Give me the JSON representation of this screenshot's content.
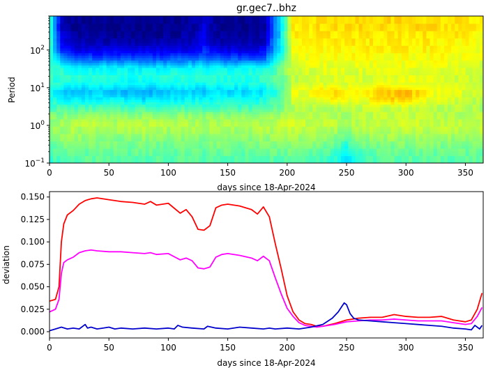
{
  "chart_data": [
    {
      "type": "heatmap",
      "title": "gr.gec7..bhz",
      "xlabel": "days since 18-Apr-2024",
      "ylabel": "Period",
      "xlim": [
        0,
        365
      ],
      "ylim": [
        0.1,
        800
      ],
      "yscale": "log",
      "xticks": [
        0,
        50,
        100,
        150,
        200,
        250,
        300,
        350
      ],
      "yticks": [
        {
          "value": 0.1,
          "base": "10",
          "exp": "−1"
        },
        {
          "value": 1,
          "base": "10",
          "exp": "0"
        },
        {
          "value": 10,
          "base": "10",
          "exp": "1"
        },
        {
          "value": 100,
          "base": "10",
          "exp": "2"
        }
      ],
      "colormap": "jet",
      "colormap_range": [
        0,
        1
      ],
      "period_rows": [
        0.1,
        0.16,
        0.26,
        0.42,
        0.7,
        1.1,
        1.8,
        3,
        5,
        8,
        13,
        21,
        35,
        57,
        95,
        155,
        255,
        420,
        700
      ],
      "day_cols": [
        0,
        10,
        20,
        40,
        60,
        80,
        100,
        120,
        130,
        140,
        160,
        180,
        195,
        205,
        220,
        240,
        250,
        260,
        280,
        300,
        320,
        340,
        365
      ],
      "values": [
        [
          0.42,
          0.44,
          0.45,
          0.46,
          0.45,
          0.46,
          0.45,
          0.46,
          0.45,
          0.46,
          0.45,
          0.46,
          0.46,
          0.47,
          0.46,
          0.42,
          0.35,
          0.42,
          0.46,
          0.46,
          0.46,
          0.46,
          0.46
        ],
        [
          0.45,
          0.46,
          0.47,
          0.47,
          0.46,
          0.47,
          0.46,
          0.47,
          0.46,
          0.47,
          0.46,
          0.47,
          0.47,
          0.48,
          0.47,
          0.43,
          0.36,
          0.43,
          0.47,
          0.47,
          0.47,
          0.47,
          0.47
        ],
        [
          0.47,
          0.48,
          0.49,
          0.49,
          0.48,
          0.49,
          0.48,
          0.49,
          0.48,
          0.49,
          0.48,
          0.49,
          0.49,
          0.5,
          0.49,
          0.46,
          0.4,
          0.46,
          0.49,
          0.49,
          0.49,
          0.49,
          0.49
        ],
        [
          0.5,
          0.51,
          0.52,
          0.51,
          0.5,
          0.51,
          0.5,
          0.51,
          0.5,
          0.51,
          0.5,
          0.51,
          0.52,
          0.53,
          0.52,
          0.5,
          0.45,
          0.5,
          0.52,
          0.52,
          0.52,
          0.52,
          0.52
        ],
        [
          0.52,
          0.53,
          0.54,
          0.54,
          0.53,
          0.54,
          0.53,
          0.54,
          0.53,
          0.54,
          0.53,
          0.54,
          0.55,
          0.56,
          0.55,
          0.54,
          0.5,
          0.54,
          0.55,
          0.56,
          0.55,
          0.55,
          0.55
        ],
        [
          0.53,
          0.54,
          0.55,
          0.56,
          0.55,
          0.56,
          0.55,
          0.55,
          0.54,
          0.55,
          0.55,
          0.56,
          0.57,
          0.58,
          0.57,
          0.56,
          0.54,
          0.56,
          0.57,
          0.58,
          0.57,
          0.57,
          0.57
        ],
        [
          0.5,
          0.51,
          0.52,
          0.52,
          0.51,
          0.52,
          0.51,
          0.52,
          0.51,
          0.52,
          0.51,
          0.52,
          0.54,
          0.56,
          0.55,
          0.55,
          0.54,
          0.55,
          0.56,
          0.57,
          0.56,
          0.55,
          0.55
        ],
        [
          0.44,
          0.45,
          0.44,
          0.45,
          0.44,
          0.45,
          0.44,
          0.45,
          0.44,
          0.45,
          0.44,
          0.45,
          0.49,
          0.54,
          0.55,
          0.56,
          0.55,
          0.56,
          0.57,
          0.58,
          0.56,
          0.55,
          0.54
        ],
        [
          0.4,
          0.38,
          0.36,
          0.37,
          0.36,
          0.34,
          0.36,
          0.38,
          0.36,
          0.39,
          0.38,
          0.4,
          0.46,
          0.58,
          0.6,
          0.65,
          0.62,
          0.6,
          0.66,
          0.68,
          0.6,
          0.58,
          0.56
        ],
        [
          0.38,
          0.33,
          0.31,
          0.32,
          0.31,
          0.29,
          0.31,
          0.33,
          0.3,
          0.34,
          0.33,
          0.35,
          0.44,
          0.6,
          0.62,
          0.67,
          0.63,
          0.62,
          0.68,
          0.7,
          0.62,
          0.6,
          0.58
        ],
        [
          0.42,
          0.4,
          0.38,
          0.39,
          0.38,
          0.37,
          0.38,
          0.39,
          0.38,
          0.4,
          0.39,
          0.41,
          0.47,
          0.56,
          0.58,
          0.6,
          0.59,
          0.58,
          0.61,
          0.62,
          0.59,
          0.58,
          0.57
        ],
        [
          0.44,
          0.42,
          0.41,
          0.41,
          0.4,
          0.4,
          0.41,
          0.41,
          0.4,
          0.41,
          0.41,
          0.42,
          0.48,
          0.56,
          0.58,
          0.59,
          0.58,
          0.58,
          0.59,
          0.6,
          0.59,
          0.58,
          0.57
        ],
        [
          0.44,
          0.4,
          0.38,
          0.37,
          0.37,
          0.36,
          0.36,
          0.37,
          0.37,
          0.37,
          0.37,
          0.38,
          0.48,
          0.58,
          0.59,
          0.6,
          0.6,
          0.6,
          0.6,
          0.61,
          0.6,
          0.59,
          0.58
        ],
        [
          0.44,
          0.28,
          0.24,
          0.22,
          0.23,
          0.22,
          0.22,
          0.24,
          0.26,
          0.23,
          0.22,
          0.23,
          0.42,
          0.6,
          0.61,
          0.62,
          0.62,
          0.62,
          0.62,
          0.62,
          0.62,
          0.61,
          0.6
        ],
        [
          0.44,
          0.18,
          0.12,
          0.11,
          0.11,
          0.11,
          0.11,
          0.12,
          0.16,
          0.12,
          0.11,
          0.12,
          0.38,
          0.62,
          0.62,
          0.63,
          0.63,
          0.63,
          0.63,
          0.63,
          0.63,
          0.62,
          0.61
        ],
        [
          0.44,
          0.12,
          0.06,
          0.05,
          0.05,
          0.05,
          0.05,
          0.07,
          0.12,
          0.06,
          0.05,
          0.06,
          0.36,
          0.63,
          0.63,
          0.64,
          0.64,
          0.64,
          0.64,
          0.64,
          0.64,
          0.63,
          0.62
        ],
        [
          0.44,
          0.08,
          0.03,
          0.02,
          0.02,
          0.02,
          0.02,
          0.04,
          0.1,
          0.03,
          0.02,
          0.03,
          0.36,
          0.64,
          0.64,
          0.65,
          0.65,
          0.65,
          0.65,
          0.65,
          0.65,
          0.64,
          0.63
        ],
        [
          0.44,
          0.06,
          0.02,
          0.01,
          0.01,
          0.01,
          0.01,
          0.03,
          0.09,
          0.02,
          0.01,
          0.02,
          0.36,
          0.65,
          0.65,
          0.66,
          0.66,
          0.66,
          0.66,
          0.66,
          0.66,
          0.65,
          0.64
        ],
        [
          0.44,
          0.06,
          0.02,
          0.01,
          0.01,
          0.01,
          0.01,
          0.03,
          0.09,
          0.02,
          0.01,
          0.02,
          0.36,
          0.65,
          0.65,
          0.66,
          0.66,
          0.66,
          0.66,
          0.66,
          0.66,
          0.65,
          0.64
        ]
      ]
    },
    {
      "type": "line",
      "title": "",
      "xlabel": "days since 18-Apr-2024",
      "ylabel": "deviation",
      "xlim": [
        0,
        365
      ],
      "ylim": [
        -0.007,
        0.156
      ],
      "xticks": [
        0,
        50,
        100,
        150,
        200,
        250,
        300,
        350
      ],
      "yticks": [
        0.0,
        0.025,
        0.05,
        0.075,
        0.1,
        0.125,
        0.15
      ],
      "ytick_labels": [
        "0.000",
        "0.025",
        "0.050",
        "0.075",
        "0.100",
        "0.125",
        "0.150"
      ],
      "series": [
        {
          "color": "#ff0000",
          "x": [
            0,
            5,
            8,
            10,
            12,
            15,
            20,
            25,
            30,
            35,
            40,
            50,
            60,
            70,
            80,
            85,
            90,
            100,
            110,
            115,
            120,
            125,
            130,
            135,
            140,
            145,
            150,
            160,
            170,
            175,
            180,
            185,
            190,
            195,
            200,
            205,
            210,
            215,
            220,
            225,
            230,
            240,
            250,
            260,
            270,
            280,
            290,
            300,
            310,
            320,
            330,
            340,
            350,
            355,
            360,
            364
          ],
          "y": [
            0.034,
            0.036,
            0.05,
            0.1,
            0.12,
            0.13,
            0.135,
            0.142,
            0.146,
            0.148,
            0.149,
            0.147,
            0.145,
            0.144,
            0.142,
            0.145,
            0.141,
            0.143,
            0.132,
            0.136,
            0.128,
            0.114,
            0.113,
            0.118,
            0.138,
            0.141,
            0.142,
            0.14,
            0.136,
            0.131,
            0.139,
            0.128,
            0.098,
            0.07,
            0.04,
            0.022,
            0.013,
            0.009,
            0.008,
            0.006,
            0.006,
            0.009,
            0.013,
            0.015,
            0.016,
            0.016,
            0.019,
            0.017,
            0.016,
            0.016,
            0.017,
            0.013,
            0.011,
            0.013,
            0.025,
            0.043
          ]
        },
        {
          "color": "#ff00ff",
          "x": [
            0,
            5,
            8,
            10,
            12,
            15,
            20,
            25,
            30,
            35,
            40,
            50,
            60,
            70,
            80,
            85,
            90,
            100,
            110,
            115,
            120,
            125,
            130,
            135,
            140,
            145,
            150,
            160,
            170,
            175,
            180,
            185,
            190,
            195,
            200,
            205,
            210,
            215,
            220,
            225,
            230,
            240,
            250,
            260,
            270,
            280,
            290,
            300,
            310,
            320,
            330,
            340,
            350,
            355,
            360,
            364
          ],
          "y": [
            0.022,
            0.025,
            0.036,
            0.065,
            0.077,
            0.08,
            0.083,
            0.088,
            0.09,
            0.091,
            0.09,
            0.089,
            0.089,
            0.088,
            0.087,
            0.088,
            0.086,
            0.087,
            0.08,
            0.082,
            0.079,
            0.071,
            0.07,
            0.072,
            0.083,
            0.086,
            0.087,
            0.085,
            0.082,
            0.079,
            0.084,
            0.079,
            0.06,
            0.042,
            0.026,
            0.017,
            0.01,
            0.007,
            0.006,
            0.005,
            0.006,
            0.008,
            0.011,
            0.012,
            0.013,
            0.013,
            0.014,
            0.013,
            0.012,
            0.012,
            0.012,
            0.01,
            0.008,
            0.009,
            0.017,
            0.027
          ]
        },
        {
          "color": "#0000cc",
          "x": [
            0,
            5,
            10,
            15,
            20,
            25,
            30,
            32,
            35,
            40,
            45,
            50,
            55,
            60,
            70,
            80,
            90,
            100,
            105,
            108,
            112,
            120,
            130,
            133,
            140,
            150,
            160,
            170,
            180,
            185,
            190,
            200,
            210,
            220,
            230,
            238,
            243,
            246,
            248,
            250,
            253,
            256,
            260,
            270,
            280,
            290,
            300,
            310,
            320,
            330,
            340,
            350,
            355,
            358,
            362,
            364
          ],
          "y": [
            0.001,
            0.003,
            0.005,
            0.003,
            0.004,
            0.003,
            0.008,
            0.004,
            0.005,
            0.003,
            0.004,
            0.005,
            0.003,
            0.004,
            0.003,
            0.004,
            0.003,
            0.004,
            0.003,
            0.007,
            0.005,
            0.004,
            0.003,
            0.006,
            0.004,
            0.003,
            0.005,
            0.004,
            0.003,
            0.004,
            0.003,
            0.004,
            0.003,
            0.005,
            0.008,
            0.015,
            0.022,
            0.028,
            0.032,
            0.03,
            0.02,
            0.015,
            0.013,
            0.012,
            0.011,
            0.01,
            0.009,
            0.008,
            0.007,
            0.006,
            0.004,
            0.003,
            0.002,
            0.007,
            0.003,
            0.007
          ]
        }
      ]
    }
  ]
}
